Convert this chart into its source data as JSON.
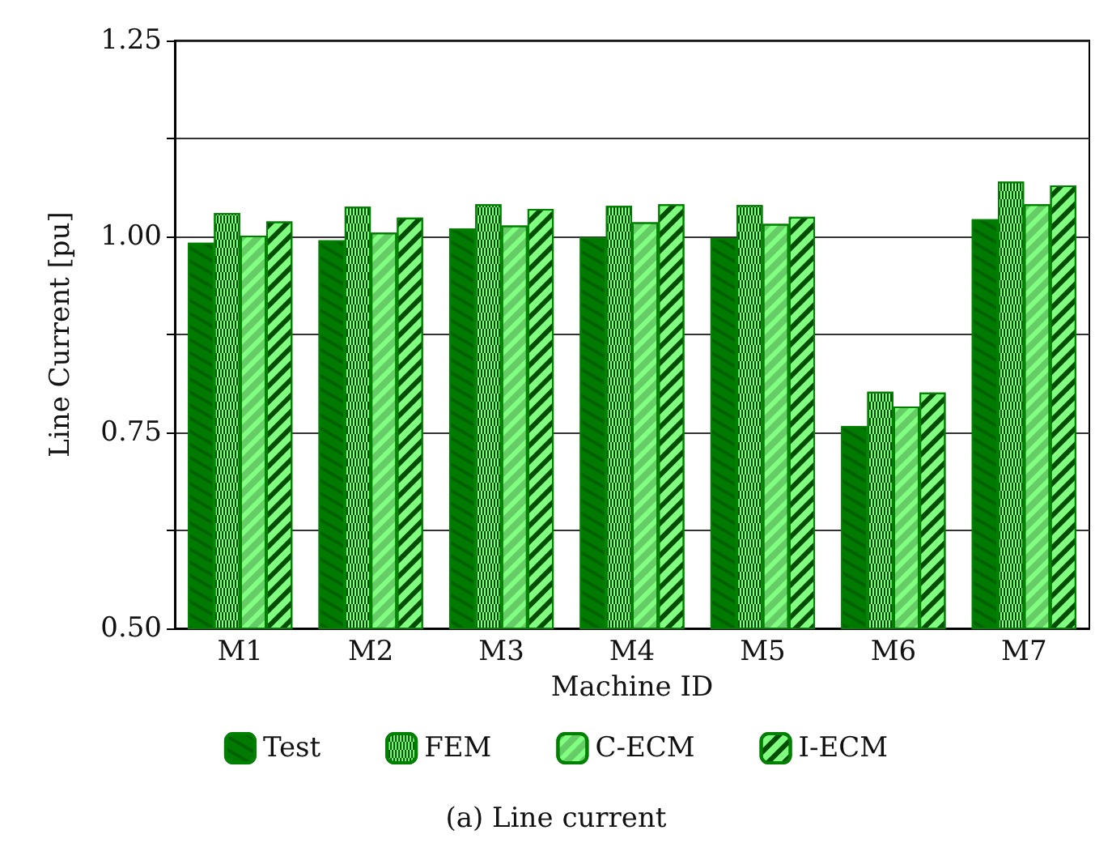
{
  "chart_data": {
    "type": "bar",
    "title": "(a) Line current",
    "xlabel": "Machine ID",
    "ylabel": "Line Current [pu]",
    "categories": [
      "M1",
      "M2",
      "M3",
      "M4",
      "M5",
      "M6",
      "M7"
    ],
    "series": [
      {
        "name": "Test",
        "color": "#007a00",
        "values": [
          0.992,
          0.995,
          1.01,
          0.999,
          0.998,
          0.758,
          1.022
        ]
      },
      {
        "name": "FEM",
        "color": "#80ff80",
        "values": [
          1.03,
          1.038,
          1.041,
          1.039,
          1.04,
          0.802,
          1.07
        ]
      },
      {
        "name": "C-ECM",
        "color": "#80ff80",
        "values": [
          1.001,
          1.005,
          1.014,
          1.018,
          1.016,
          0.783,
          1.041
        ]
      },
      {
        "name": "I-ECM",
        "color": "#80ff80",
        "values": [
          1.019,
          1.024,
          1.035,
          1.041,
          1.025,
          0.801,
          1.065
        ]
      }
    ],
    "ylim": [
      0.5,
      1.25
    ],
    "yticks": [
      {
        "value": 0.5,
        "label": "0.50"
      },
      {
        "value": 0.625,
        "label": null
      },
      {
        "value": 0.75,
        "label": "0.75"
      },
      {
        "value": 0.875,
        "label": null
      },
      {
        "value": 1.0,
        "label": "1.00"
      },
      {
        "value": 1.125,
        "label": null
      },
      {
        "value": 1.25,
        "label": "1.25"
      }
    ],
    "grid": "y",
    "legend": "bottom"
  }
}
